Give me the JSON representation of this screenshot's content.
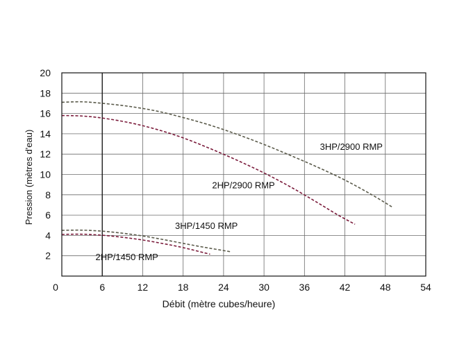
{
  "chart_data": {
    "type": "line",
    "xlabel": "Débit (mètre cubes/heure)",
    "ylabel": "Pression (mètres d'eau)",
    "xlim": [
      0,
      54
    ],
    "ylim": [
      0,
      20
    ],
    "x_ticks": [
      "0",
      "6",
      "12",
      "18",
      "24",
      "30",
      "36",
      "42",
      "48",
      "54"
    ],
    "y_ticks": [
      "2",
      "4",
      "6",
      "8",
      "10",
      "12",
      "14",
      "16",
      "18",
      "20"
    ],
    "grid": true,
    "highlight_x": 6,
    "series": [
      {
        "name": "3HP/2900 RMP",
        "color": "#5a5a4a",
        "x": [
          0,
          3,
          6,
          10,
          14,
          18,
          22,
          26,
          30,
          34,
          38,
          42,
          46,
          49
        ],
        "y": [
          17.1,
          17.15,
          17.0,
          16.7,
          16.25,
          15.6,
          14.85,
          13.95,
          12.95,
          11.85,
          10.7,
          9.45,
          8.0,
          6.8
        ]
      },
      {
        "name": "2HP/2900 RMP",
        "color": "#7a1a3a",
        "x": [
          0,
          3,
          6,
          10,
          14,
          18,
          22,
          26,
          30,
          34,
          38,
          41,
          43.5
        ],
        "y": [
          15.8,
          15.75,
          15.55,
          15.1,
          14.45,
          13.6,
          12.55,
          11.4,
          10.15,
          8.75,
          7.2,
          6.0,
          5.1
        ]
      },
      {
        "name": "3HP/1450 RMP",
        "color": "#5a5a4a",
        "x": [
          0,
          3,
          6,
          9,
          12,
          15,
          18,
          21,
          25
        ],
        "y": [
          4.5,
          4.52,
          4.42,
          4.22,
          3.95,
          3.6,
          3.22,
          2.85,
          2.4
        ]
      },
      {
        "name": "2HP/1450 RMP",
        "color": "#7a1a3a",
        "x": [
          0,
          3,
          6,
          9,
          12,
          15,
          18,
          22
        ],
        "y": [
          4.1,
          4.12,
          4.02,
          3.82,
          3.55,
          3.2,
          2.8,
          2.15
        ]
      }
    ],
    "labels": [
      {
        "text": "3HP/2900 RMP",
        "x": 38.3,
        "y": 12.7
      },
      {
        "text": "2HP/2900 RMP",
        "x": 22.3,
        "y": 8.9
      },
      {
        "text": "3HP/1450 RMP",
        "x": 16.8,
        "y": 4.9
      },
      {
        "text": "2HP/1450 RMP",
        "x": 5.0,
        "y": 1.85
      }
    ]
  }
}
